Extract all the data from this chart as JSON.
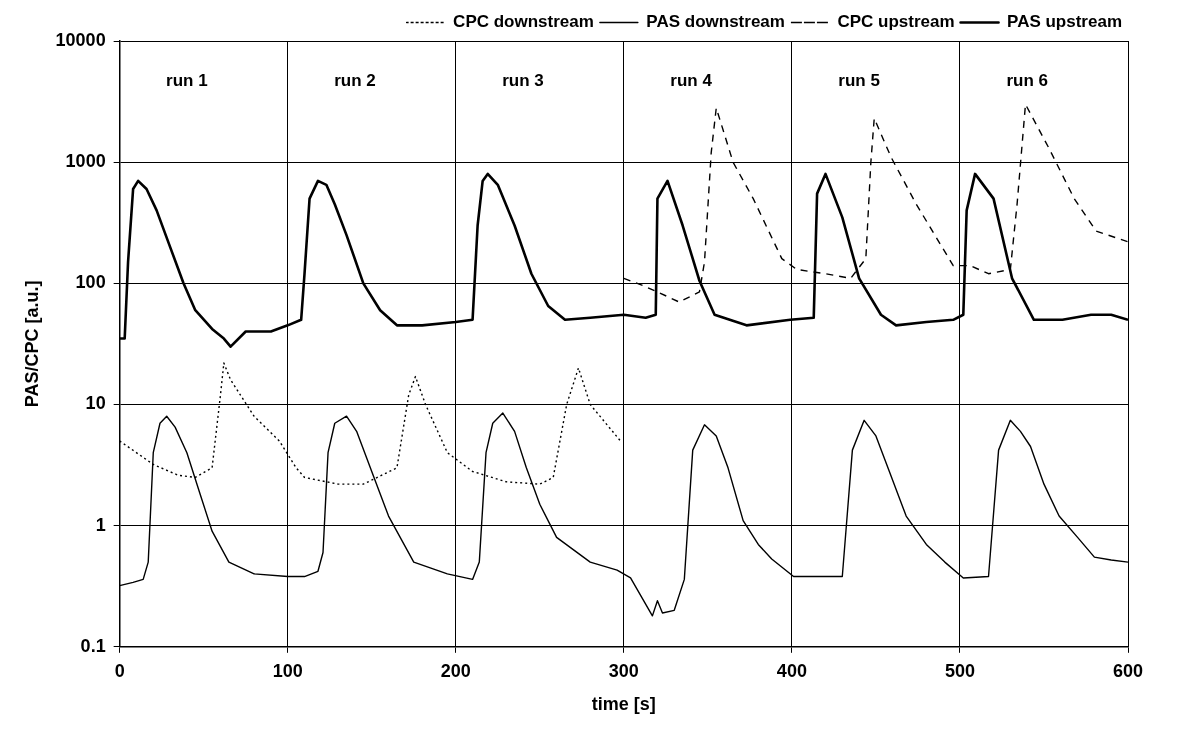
{
  "chart_data": {
    "type": "line",
    "xlabel": "time [s]",
    "ylabel": "PAS/CPC [a.u.]",
    "log": "y",
    "grid": true,
    "legend": "top",
    "marker": "none",
    "xlim": [
      0,
      600
    ],
    "xticks": [
      0,
      100,
      200,
      300,
      400,
      500,
      600
    ],
    "ylim": [
      0.1,
      10000
    ],
    "yticks": [
      0.1,
      1,
      10,
      100,
      1000,
      10000
    ],
    "annotations": [
      "run 1",
      "run 2",
      "run 3",
      "run 4",
      "run 5",
      "run 6"
    ],
    "series": [
      {
        "name": "CPC downstream",
        "color": "#000000",
        "line_style": "dotted",
        "x": [
          0,
          20,
          35,
          45,
          55,
          60,
          62,
          66,
          80,
          95,
          105,
          110,
          130,
          145,
          165,
          172,
          176,
          182,
          195,
          210,
          230,
          250,
          258,
          266,
          273,
          280,
          298
        ],
        "values": [
          5,
          3.2,
          2.6,
          2.5,
          3,
          12,
          22,
          16,
          8,
          5,
          3,
          2.5,
          2.2,
          2.2,
          3,
          12,
          17,
          10,
          4,
          2.8,
          2.3,
          2.2,
          2.5,
          10,
          20,
          10,
          5
        ]
      },
      {
        "name": "PAS downstream",
        "color": "#000000",
        "line_style": "solid",
        "x": [
          0,
          8,
          14,
          17,
          20,
          24,
          28,
          33,
          40,
          48,
          55,
          65,
          80,
          100,
          110,
          118,
          121,
          124,
          128,
          135,
          141,
          150,
          160,
          175,
          195,
          210,
          214,
          218,
          222,
          228,
          235,
          242,
          250,
          260,
          280,
          296,
          304,
          317,
          320,
          323,
          330,
          336,
          341,
          348,
          355,
          362,
          371,
          380,
          388,
          401,
          420,
          430,
          436,
          443,
          450,
          458,
          468,
          480,
          491,
          502,
          517,
          523,
          530,
          536,
          542,
          550,
          559,
          570,
          580,
          590,
          600
        ],
        "values": [
          0.32,
          0.34,
          0.36,
          0.5,
          4,
          7,
          8,
          6.5,
          4,
          1.8,
          0.9,
          0.5,
          0.4,
          0.38,
          0.38,
          0.42,
          0.6,
          4,
          7,
          8,
          6,
          2.8,
          1.2,
          0.5,
          0.4,
          0.36,
          0.5,
          4,
          7,
          8.5,
          6,
          3,
          1.5,
          0.8,
          0.5,
          0.43,
          0.37,
          0.18,
          0.24,
          0.19,
          0.2,
          0.36,
          4.2,
          6.8,
          5.5,
          3,
          1.1,
          0.7,
          0.53,
          0.38,
          0.38,
          0.38,
          4.2,
          7.4,
          5.5,
          2.8,
          1.2,
          0.7,
          0.5,
          0.37,
          0.38,
          4.2,
          7.4,
          6,
          4.5,
          2.2,
          1.2,
          0.8,
          0.55,
          0.52,
          0.5
        ]
      },
      {
        "name": "CPC upstream",
        "color": "#000000",
        "line_style": "dashed",
        "x": [
          300,
          312,
          320,
          333,
          345,
          348,
          352,
          355,
          365,
          377,
          394,
          403,
          420,
          435,
          444,
          447,
          449,
          459,
          474,
          496,
          506,
          517,
          530,
          534,
          539,
          553,
          568,
          581,
          600
        ],
        "values": [
          110,
          95,
          85,
          70,
          85,
          150,
          1200,
          2800,
          1000,
          500,
          160,
          130,
          120,
          110,
          160,
          1000,
          2300,
          1100,
          450,
          140,
          140,
          120,
          130,
          450,
          3000,
          1300,
          500,
          270,
          220
        ]
      },
      {
        "name": "PAS upstream",
        "color": "#000000",
        "line_style": "solid",
        "x": [
          0,
          3,
          5,
          8,
          11,
          16,
          22,
          30,
          38,
          45,
          55,
          62,
          66,
          75,
          90,
          100,
          108,
          110,
          113,
          118,
          123,
          128,
          135,
          145,
          155,
          165,
          180,
          200,
          210,
          213,
          216,
          219,
          225,
          235,
          245,
          255,
          265,
          280,
          300,
          313,
          319,
          320,
          326,
          335,
          345,
          354,
          373,
          399,
          413,
          415,
          420,
          430,
          440,
          453,
          462,
          480,
          496,
          502,
          504,
          509,
          520,
          531,
          544,
          561,
          578,
          590,
          600
        ],
        "values": [
          35,
          35,
          150,
          600,
          700,
          600,
          400,
          200,
          100,
          60,
          42,
          35,
          30,
          40,
          40,
          45,
          50,
          120,
          500,
          700,
          650,
          450,
          250,
          100,
          60,
          45,
          45,
          48,
          50,
          300,
          700,
          800,
          650,
          300,
          120,
          65,
          50,
          52,
          55,
          52,
          55,
          500,
          700,
          300,
          105,
          55,
          45,
          50,
          52,
          550,
          800,
          350,
          110,
          55,
          45,
          48,
          50,
          55,
          400,
          800,
          500,
          110,
          50,
          50,
          55,
          55,
          50
        ]
      }
    ]
  }
}
